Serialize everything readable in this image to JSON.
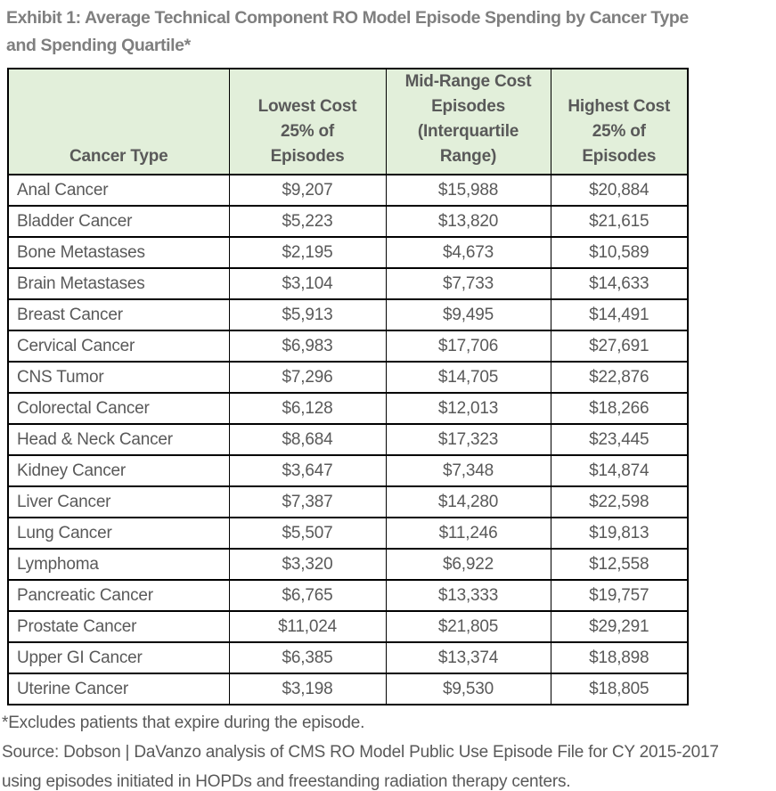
{
  "title": {
    "text": "Exhibit 1: Average Technical Component RO Model Episode Spending by Cancer Type\nand Spending Quartile*"
  },
  "colors": {
    "header_background": "#e2efda",
    "title_text": "#7f7f7f",
    "body_text": "#595959",
    "border": "#000000"
  },
  "table": {
    "columns": [
      {
        "key": "cancer_type",
        "label": "Cancer Type"
      },
      {
        "key": "lowest",
        "label": "Lowest Cost\n25% of\nEpisodes"
      },
      {
        "key": "mid",
        "label": "Mid-Range Cost\nEpisodes\n(Interquartile\nRange)"
      },
      {
        "key": "highest",
        "label": "Highest Cost\n25% of\nEpisodes"
      }
    ],
    "rows": [
      {
        "cancer_type": "Anal Cancer",
        "lowest": "$9,207",
        "mid": "$15,988",
        "highest": "$20,884"
      },
      {
        "cancer_type": "Bladder Cancer",
        "lowest": "$5,223",
        "mid": "$13,820",
        "highest": "$21,615"
      },
      {
        "cancer_type": "Bone Metastases",
        "lowest": "$2,195",
        "mid": "$4,673",
        "highest": "$10,589"
      },
      {
        "cancer_type": "Brain Metastases",
        "lowest": "$3,104",
        "mid": "$7,733",
        "highest": "$14,633"
      },
      {
        "cancer_type": "Breast Cancer",
        "lowest": "$5,913",
        "mid": "$9,495",
        "highest": "$14,491"
      },
      {
        "cancer_type": "Cervical Cancer",
        "lowest": "$6,983",
        "mid": "$17,706",
        "highest": "$27,691"
      },
      {
        "cancer_type": "CNS Tumor",
        "lowest": "$7,296",
        "mid": "$14,705",
        "highest": "$22,876"
      },
      {
        "cancer_type": "Colorectal Cancer",
        "lowest": "$6,128",
        "mid": "$12,013",
        "highest": "$18,266"
      },
      {
        "cancer_type": "Head & Neck Cancer",
        "lowest": "$8,684",
        "mid": "$17,323",
        "highest": "$23,445"
      },
      {
        "cancer_type": "Kidney Cancer",
        "lowest": "$3,647",
        "mid": "$7,348",
        "highest": "$14,874"
      },
      {
        "cancer_type": "Liver Cancer",
        "lowest": "$7,387",
        "mid": "$14,280",
        "highest": "$22,598"
      },
      {
        "cancer_type": "Lung Cancer",
        "lowest": "$5,507",
        "mid": "$11,246",
        "highest": "$19,813"
      },
      {
        "cancer_type": "Lymphoma",
        "lowest": "$3,320",
        "mid": "$6,922",
        "highest": "$12,558"
      },
      {
        "cancer_type": "Pancreatic Cancer",
        "lowest": "$6,765",
        "mid": "$13,333",
        "highest": "$19,757"
      },
      {
        "cancer_type": "Prostate Cancer",
        "lowest": "$11,024",
        "mid": "$21,805",
        "highest": "$29,291"
      },
      {
        "cancer_type": "Upper GI Cancer",
        "lowest": "$6,385",
        "mid": "$13,374",
        "highest": "$18,898"
      },
      {
        "cancer_type": "Uterine Cancer",
        "lowest": "$3,198",
        "mid": "$9,530",
        "highest": "$18,805"
      }
    ]
  },
  "footnotes": {
    "exclusion": "*Excludes patients that expire during the episode.",
    "source": "Source: Dobson | DaVanzo analysis of CMS RO Model Public Use Episode File for CY 2015-2017\nusing episodes initiated in HOPDs and freestanding radiation therapy centers."
  }
}
